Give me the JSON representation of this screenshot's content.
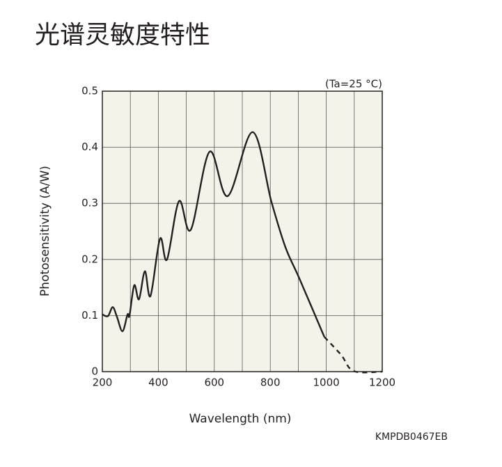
{
  "chart_data": {
    "type": "line",
    "title": "光谱灵敏度特性",
    "annotation": "(Ta=25 °C)",
    "xlabel": "Wavelength (nm)",
    "ylabel": "Photosensitivity (A/W)",
    "code": "KMPDB0467EB",
    "xlim": [
      200,
      1200
    ],
    "ylim": [
      0,
      0.5
    ],
    "xticks": [
      200,
      400,
      600,
      800,
      1000,
      1200
    ],
    "xgrid_ticks": [
      300,
      500,
      700,
      900,
      1100
    ],
    "yticks": [
      0,
      0.1,
      0.2,
      0.3,
      0.4,
      0.5
    ],
    "grid": true,
    "plot_background": "#f4f3ea",
    "series": [
      {
        "color": "#231f20",
        "dashed": false,
        "x": [
          200,
          220,
          237,
          252,
          272,
          290,
          297,
          314,
          331,
          352,
          372,
          406,
          431,
          474,
          516,
          583,
          648,
          737,
          804,
          854,
          904,
          993
        ],
        "values": [
          0.102,
          0.099,
          0.115,
          0.098,
          0.072,
          0.102,
          0.1,
          0.154,
          0.129,
          0.179,
          0.135,
          0.237,
          0.2,
          0.304,
          0.253,
          0.392,
          0.313,
          0.427,
          0.303,
          0.222,
          0.166,
          0.062
        ]
      },
      {
        "color": "#231f20",
        "dashed": true,
        "x": [
          993,
          1053,
          1098,
          1200
        ],
        "values": [
          0.062,
          0.03,
          0.001,
          0
        ]
      }
    ]
  }
}
